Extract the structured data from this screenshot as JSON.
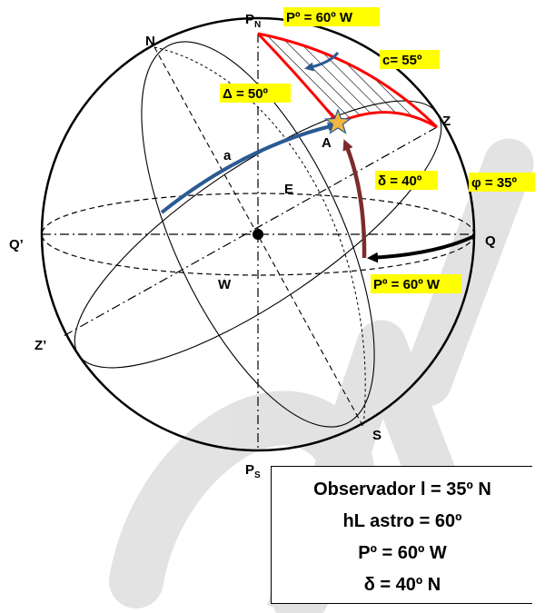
{
  "labels": {
    "pn_main": "P",
    "pn_sub": "N",
    "ps_main": "P",
    "ps_sub": "S",
    "n": "N",
    "s": "S",
    "z": "Z",
    "z_prime": "Z’",
    "q": "Q",
    "q_prime": "Q’",
    "e": "E",
    "w": "W",
    "a_small": "a",
    "a_star": "A"
  },
  "highlights": {
    "pole_angle_top": "Pº = 60º W",
    "colatitude": "c= 55º",
    "polar_distance": "Δ = 50º",
    "declination": "δ = 40º",
    "latitude": "φ = 35º",
    "pole_angle_bottom": "Pº = 60º W"
  },
  "info_box": {
    "line1": "Observador  l = 35º N",
    "line2": "hL astro = 60º",
    "line3": "Pº = 60º W",
    "line4": "δ = 40º N"
  },
  "colors": {
    "highlight": "#ffff00",
    "triangle": "#ff0000",
    "blue_arc": "#2b5a93",
    "brown_arc": "#7b2c2c",
    "star": "#f2b63c",
    "watermark": "#d9d9d9"
  }
}
